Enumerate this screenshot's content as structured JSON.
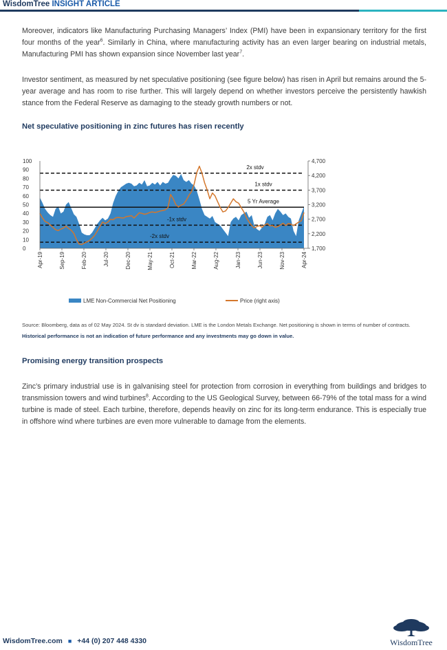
{
  "header": {
    "brand": "WisdomTree",
    "label": "INSIGHT ARTICLE"
  },
  "para1": {
    "t1": "Moreover, indicators like Manufacturing Purchasing Managers’ Index (PMI) have been in expansionary territory for the first four months of the year",
    "s1": "6",
    "t2": ". Similarly in China, where manufacturing activity has an even larger bearing on industrial metals, Manufacturing PMI has shown expansion since November last year",
    "s2": "7",
    "t3": "."
  },
  "para2": "Investor sentiment, as measured by net speculative positioning (see figure below) has risen in April but remains around the 5-year average and has room to rise further. This will largely depend on whether investors perceive the persistently hawkish stance from the Federal Reserve as damaging to the steady growth numbers or not.",
  "chart_heading": "Net speculative positioning in zinc futures has risen recently",
  "chart_data": {
    "type": "area",
    "title": "",
    "x_ticks": [
      "Apr-19",
      "Sep-19",
      "Feb-20",
      "Jul-20",
      "Dec-20",
      "May-21",
      "Oct-21",
      "Mar-22",
      "Aug-22",
      "Jan-23",
      "Jun-23",
      "Nov-23",
      "Apr-24"
    ],
    "y_left_ticks": [
      "0",
      "10",
      "20",
      "30",
      "40",
      "50",
      "60",
      "70",
      "80",
      "90",
      "100"
    ],
    "y_left_range": [
      0,
      100
    ],
    "y_right_ticks": [
      "1,700",
      "2,200",
      "2,700",
      "3,200",
      "3,700",
      "4,200",
      "4,700"
    ],
    "y_right_range": [
      1700,
      4700
    ],
    "reference_lines": [
      {
        "label": "2x stdv",
        "value": 86,
        "style": "dashed"
      },
      {
        "label": "1x stdv",
        "value": 66.5,
        "style": "dashed"
      },
      {
        "label": "5 Yr Average",
        "value": 47,
        "style": "solid"
      },
      {
        "label": "-1x stdv",
        "value": 26.5,
        "style": "dashed"
      },
      {
        "label": "-2x stdv",
        "value": 7,
        "style": "dashed"
      }
    ],
    "series": [
      {
        "name": "LME Non-Commercial Net Positioning",
        "axis": "left",
        "color": "#3a86c4",
        "type": "area",
        "values": [
          58,
          52,
          45,
          41,
          38,
          36,
          45,
          48,
          40,
          42,
          50,
          53,
          46,
          39,
          36,
          28,
          18,
          16,
          15,
          15,
          18,
          23,
          28,
          32,
          35,
          32,
          34,
          40,
          52,
          60,
          66,
          70,
          72,
          74,
          75,
          74,
          71,
          72,
          75,
          73,
          78,
          71,
          72,
          75,
          73,
          76,
          72,
          76,
          74,
          75,
          80,
          84,
          83,
          80,
          85,
          78,
          76,
          78,
          74,
          72,
          66,
          56,
          45,
          38,
          36,
          34,
          37,
          30,
          28,
          26,
          22,
          18,
          14,
          30,
          34,
          36,
          32,
          38,
          40,
          42,
          35,
          38,
          26,
          22,
          20,
          24,
          28,
          36,
          38,
          32,
          40,
          45,
          42,
          38,
          40,
          36,
          34,
          20,
          14,
          32,
          40,
          48
        ]
      },
      {
        "name": "Price (right axis)",
        "axis": "right",
        "color": "#d4772c",
        "type": "line",
        "values": [
          2900,
          2740,
          2620,
          2580,
          2500,
          2420,
          2340,
          2310,
          2360,
          2400,
          2460,
          2380,
          2320,
          2210,
          2000,
          1850,
          1830,
          1880,
          1920,
          1970,
          2050,
          2150,
          2300,
          2450,
          2600,
          2550,
          2600,
          2700,
          2680,
          2750,
          2760,
          2750,
          2740,
          2790,
          2800,
          2820,
          2740,
          2830,
          2920,
          2900,
          2870,
          2890,
          2930,
          2950,
          2930,
          2950,
          2980,
          3000,
          3020,
          3100,
          3550,
          3400,
          3200,
          3120,
          3180,
          3220,
          3350,
          3520,
          3650,
          3900,
          4300,
          4520,
          4280,
          3950,
          3700,
          3400,
          3600,
          3500,
          3300,
          3100,
          2950,
          2980,
          3100,
          3250,
          3400,
          3300,
          3250,
          3100,
          2950,
          2750,
          2600,
          2480,
          2400,
          2450,
          2480,
          2420,
          2500,
          2550,
          2470,
          2480,
          2420,
          2450,
          2500,
          2560,
          2480,
          2550,
          2530,
          2480,
          2540,
          2600,
          2650,
          2930
        ]
      }
    ],
    "legend": "bottom"
  },
  "source": {
    "normal": "Source: Bloomberg, data as of 02 May 2024. St dv is standard deviation. LME is the London Metals Exchange. Net positioning is shown in terms of number of contracts.",
    "bold": "Historical performance is not an indication of future performance and any investments may go down in value."
  },
  "section2_heading": "Promising energy transition prospects",
  "para3": {
    "t1": "Zinc’s primary industrial use is in galvanising steel for protection from corrosion in everything from buildings and bridges to transmission towers and wind turbines",
    "s1": "8",
    "t2": ". According to the US Geological Survey, between 66-79% of the total mass for a wind turbine is made of steel. Each turbine, therefore, depends heavily on zinc for its long-term endurance. This is especially true in offshore wind where turbines are even more vulnerable to damage from the elements."
  },
  "footer": {
    "site": "WisdomTree.com",
    "phone": "+44 (0) 207 448 4330",
    "logo_text": "WisdomTree"
  }
}
